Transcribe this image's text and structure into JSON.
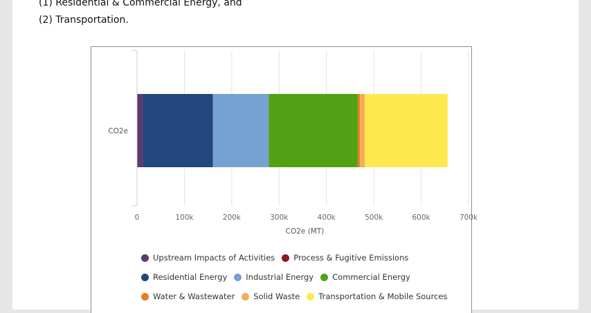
{
  "document": {
    "line1": "(1) Residential & Commercial Energy, and",
    "line2": "(2) Transportation."
  },
  "chart_data": {
    "type": "bar",
    "orientation": "horizontal",
    "stacked": true,
    "categories": [
      "CO2e"
    ],
    "xlabel": "CO2e (MT)",
    "xlim": [
      0,
      700000
    ],
    "xticks": [
      "0",
      "100k",
      "200k",
      "300k",
      "400k",
      "500k",
      "600k",
      "700k"
    ],
    "grid": true,
    "legend_position": "bottom",
    "series": [
      {
        "name": "Upstream Impacts of Activities",
        "values": [
          12000
        ],
        "color": "#5b3a6e"
      },
      {
        "name": "Process & Fugitive Emissions",
        "values": [
          300
        ],
        "color": "#8b1a1a"
      },
      {
        "name": "Residential Energy",
        "values": [
          148000
        ],
        "color": "#22477f"
      },
      {
        "name": "Industrial Energy",
        "values": [
          118000
        ],
        "color": "#76a2d1"
      },
      {
        "name": "Commercial Energy",
        "values": [
          188000
        ],
        "color": "#50a214"
      },
      {
        "name": "Water & Wastewater",
        "values": [
          4500
        ],
        "color": "#e77c21"
      },
      {
        "name": "Solid Waste",
        "values": [
          10000
        ],
        "color": "#f2ad5a"
      },
      {
        "name": "Transportation & Mobile Sources",
        "values": [
          175000
        ],
        "color": "#fde84f"
      }
    ],
    "legend_rows": [
      [
        0,
        1
      ],
      [
        2,
        3,
        4
      ],
      [
        5,
        6,
        7
      ]
    ]
  }
}
